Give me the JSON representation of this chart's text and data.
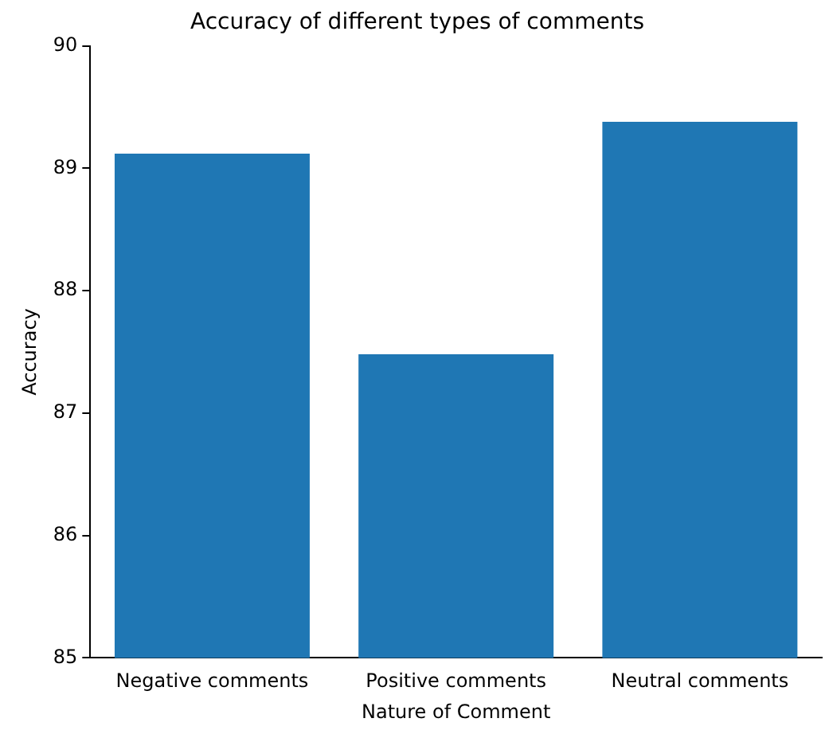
{
  "chart_data": {
    "type": "bar",
    "title": "Accuracy of different types of comments",
    "xlabel": "Nature of Comment",
    "ylabel": "Accuracy",
    "categories": [
      "Negative comments",
      "Positive comments",
      "Neutral comments"
    ],
    "values": [
      89.12,
      87.48,
      89.38
    ],
    "color": "#1f77b4",
    "ylim": [
      85,
      90
    ],
    "yticks": [
      85,
      86,
      87,
      88,
      89,
      90
    ],
    "grid": false,
    "legend": false
  }
}
